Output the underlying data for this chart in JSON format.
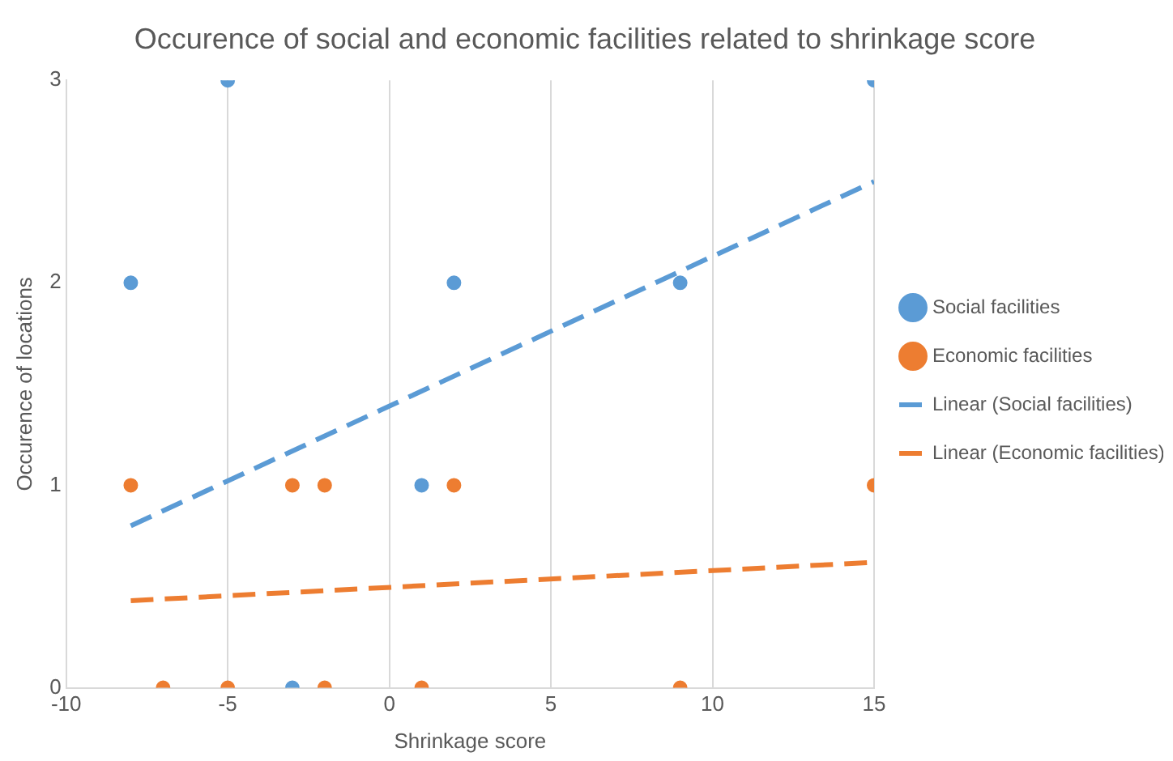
{
  "chart_data": {
    "type": "scatter",
    "title": "Occurence of social and economic facilities related to shrinkage score",
    "xlabel": "Shrinkage score",
    "ylabel": "Occurence of locations",
    "xlim": [
      -10,
      15
    ],
    "xticks": [
      -10,
      -5,
      0,
      5,
      10,
      15
    ],
    "ylim": [
      0,
      3
    ],
    "yticks": [
      0,
      1,
      2,
      3
    ],
    "grid": "x",
    "legend": "right",
    "marker": "circle",
    "series": [
      {
        "name": "Social facilities",
        "color": "#5b9bd5",
        "x": [
          -8,
          -5,
          15,
          2,
          9,
          1,
          -3
        ],
        "values": [
          2,
          3,
          3,
          2,
          2,
          1,
          0
        ]
      },
      {
        "name": "Economic facilities",
        "color": "#ed7d31",
        "x": [
          -8,
          -3,
          -2,
          2,
          15,
          -7,
          -5,
          -2,
          1,
          9
        ],
        "values": [
          1,
          1,
          1,
          1,
          1,
          0,
          0,
          0,
          0,
          0
        ]
      },
      {
        "name": "Linear (Social facilities)",
        "type": "line",
        "line_style": "dashed",
        "marker": "none",
        "color": "#5b9bd5",
        "x": [
          -8,
          15
        ],
        "values": [
          0.8,
          2.5
        ]
      },
      {
        "name": "Linear (Economic facilities)",
        "type": "line",
        "line_style": "dashed",
        "marker": "none",
        "color": "#ed7d31",
        "x": [
          -8,
          15
        ],
        "values": [
          0.43,
          0.62
        ]
      }
    ]
  }
}
